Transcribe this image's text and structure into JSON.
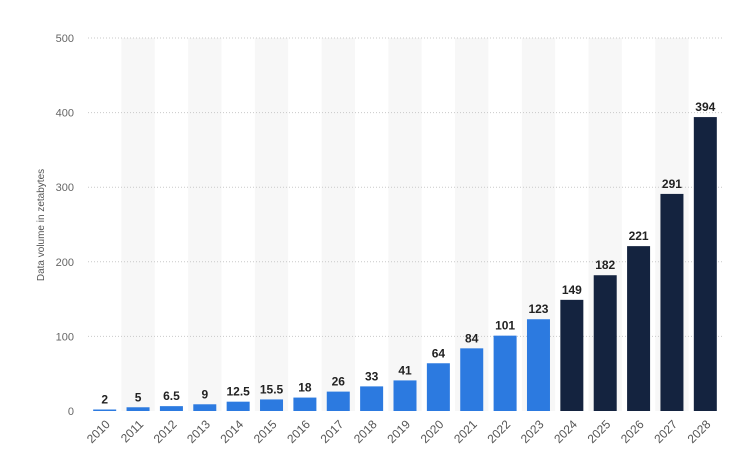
{
  "chart_data": {
    "type": "bar",
    "title": "",
    "xlabel": "",
    "ylabel": "Data volume in zetabytes",
    "ylim": [
      0,
      500
    ],
    "yticks": [
      0,
      100,
      200,
      300,
      400,
      500
    ],
    "grid": true,
    "categories": [
      "2010",
      "2011",
      "2012",
      "2013",
      "2014",
      "2015",
      "2016",
      "2017",
      "2018",
      "2019",
      "2020",
      "2021",
      "2022",
      "2023",
      "2024",
      "2025",
      "2026",
      "2027",
      "2028"
    ],
    "values": [
      2,
      5,
      6.5,
      9,
      12.5,
      15.5,
      18,
      26,
      33,
      41,
      64,
      84,
      101,
      123,
      149,
      182,
      221,
      291,
      394
    ],
    "value_labels": [
      "2",
      "5",
      "6.5",
      "9",
      "12.5",
      "15.5",
      "18",
      "26",
      "33",
      "41",
      "64",
      "84",
      "101",
      "123",
      "149",
      "182",
      "221",
      "291",
      "394"
    ],
    "forecast_from_index": 14,
    "colors": {
      "actual": "#2c7ae0",
      "forecast": "#14233f",
      "column_band": "#f7f7f7"
    }
  }
}
